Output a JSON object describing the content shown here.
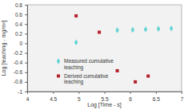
{
  "chart_data": {
    "type": "scatter",
    "x_label": "Log [Time - s]",
    "y_label": "Log [leaching - mg/m²]",
    "xlim": [
      4,
      7
    ],
    "xticks": [
      4,
      4.5,
      5,
      5.5,
      6,
      6.5,
      7
    ],
    "ylim": [
      -1,
      0.8
    ],
    "yticks": [
      -1,
      -0.8,
      -0.6,
      -0.4,
      -0.2,
      0,
      0.2,
      0.4,
      0.6,
      0.8
    ],
    "grid": false,
    "legend": "lower left",
    "series": [
      {
        "name": "Measured cumulative leaching",
        "color": "#5fd3d3",
        "marker": "diamond",
        "x": [
          4.95,
          5.75,
          6.05,
          6.3,
          6.55,
          6.8
        ],
        "values": [
          0.02,
          0.27,
          0.28,
          0.29,
          0.3,
          0.31
        ]
      },
      {
        "name": "Derived cumulative leaching",
        "color": "#b5202a",
        "marker": "square",
        "x": [
          4.95,
          5.4,
          5.75,
          6.1,
          6.35
        ],
        "values": [
          0.57,
          0.23,
          -0.57,
          -0.8,
          -0.68
        ]
      }
    ]
  }
}
